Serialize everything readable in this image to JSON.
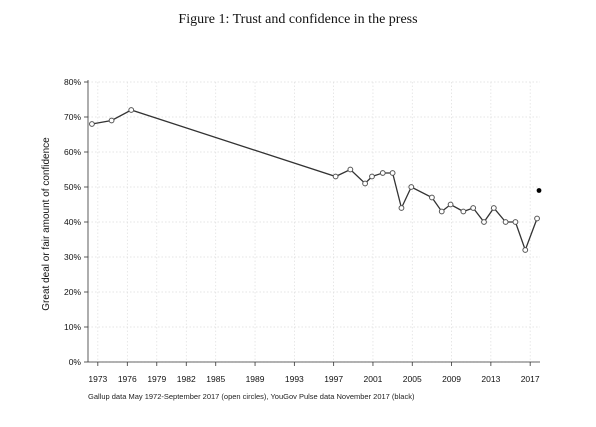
{
  "page": {
    "title": "Figure 1: Trust and confidence in the press",
    "note": "Gallup data May 1972-September 2017 (open circles), YouGov Pulse data November 2017 (black)"
  },
  "chart_data": {
    "type": "line",
    "title": "Figure 1: Trust and confidence in the press",
    "xlabel": "",
    "ylabel": "Great deal or fair amount of confidence",
    "xlim": [
      1972,
      2018
    ],
    "ylim": [
      0,
      80
    ],
    "y_ticks": [
      0,
      10,
      20,
      30,
      40,
      50,
      60,
      70,
      80
    ],
    "y_tick_labels": [
      "0%",
      "10%",
      "20%",
      "30%",
      "40%",
      "50%",
      "60%",
      "70%",
      "80%"
    ],
    "x_ticks": [
      1973,
      1976,
      1979,
      1982,
      1985,
      1989,
      1993,
      1997,
      2001,
      2005,
      2009,
      2013,
      2017
    ],
    "x_tick_labels": [
      "1973",
      "1976",
      "1979",
      "1982",
      "1985",
      "1989",
      "1993",
      "1997",
      "2001",
      "2005",
      "2009",
      "2013",
      "2017"
    ],
    "grid": true,
    "series": [
      {
        "marker": "open-circle",
        "color": "#333333",
        "points": [
          [
            1972.4,
            68
          ],
          [
            1974.4,
            69
          ],
          [
            1976.4,
            72
          ],
          [
            1997.2,
            53
          ],
          [
            1998.7,
            55
          ],
          [
            2000.2,
            51
          ],
          [
            2000.9,
            53
          ],
          [
            2002.0,
            54
          ],
          [
            2003.0,
            54
          ],
          [
            2003.9,
            44
          ],
          [
            2004.9,
            50
          ],
          [
            2007.0,
            47
          ],
          [
            2008.0,
            43
          ],
          [
            2008.9,
            45
          ],
          [
            2010.2,
            43
          ],
          [
            2011.2,
            44
          ],
          [
            2012.3,
            40
          ],
          [
            2013.3,
            44
          ],
          [
            2014.5,
            40
          ],
          [
            2015.5,
            40
          ],
          [
            2016.5,
            32
          ],
          [
            2017.7,
            41
          ]
        ]
      },
      {
        "marker": "filled-circle",
        "color": "#000000",
        "points": [
          [
            2017.9,
            49
          ]
        ]
      }
    ]
  }
}
